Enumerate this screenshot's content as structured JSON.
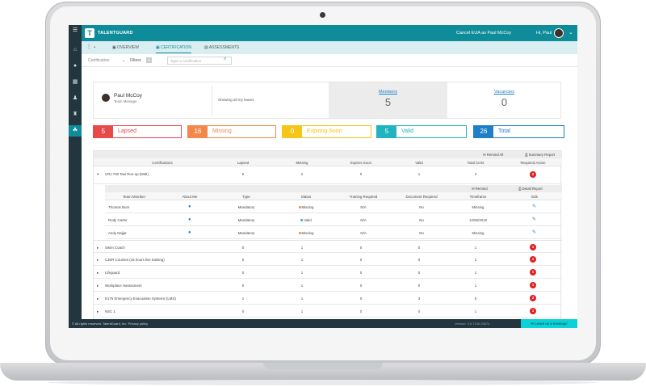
{
  "app": {
    "brand": "TALENTGUARD",
    "cancel_text": "Cancel EUA as Paul McCoy",
    "greeting": "Hi, Paul"
  },
  "tabs": [
    {
      "label": "OVERVIEW"
    },
    {
      "label": "CERTIFICATION"
    },
    {
      "label": "ASSESSMENTS"
    }
  ],
  "filters": {
    "certification_label": "Certification",
    "filters_label": "Filters",
    "filter_count": "0",
    "search_placeholder": "Type a certification"
  },
  "profile": {
    "name": "Paul McCoy",
    "role": "Team Manager",
    "showing": "Showing all my teams"
  },
  "kpis": {
    "members_label": "Members",
    "members_value": "5",
    "vacancies_label": "Vacancies",
    "vacancies_value": "0"
  },
  "stats": [
    {
      "value": "5",
      "label": "Lapsed",
      "color": "#e84a4a"
    },
    {
      "value": "16",
      "label": "Missing",
      "color": "#f2894a"
    },
    {
      "value": "0",
      "label": "Expiring Soon",
      "color": "#f5c518"
    },
    {
      "value": "5",
      "label": "Valid",
      "color": "#21b3bf"
    },
    {
      "value": "26",
      "label": "Total",
      "color": "#1e7fc8"
    }
  ],
  "table": {
    "remind_all": "Remind All",
    "summary_report": "Summary Report",
    "headers": [
      "Certifications",
      "Lapsed",
      "Missing",
      "Expires Soon",
      "Valid",
      "Total Certs",
      "Required Action"
    ],
    "expanded": {
      "name": "CRJ 700 Taxi Run-up (DMI)",
      "lapsed": "0",
      "missing": "2",
      "expires": "0",
      "valid": "1",
      "total": "3",
      "action": "2"
    },
    "sub_remind": "Remind",
    "sub_detail": "Detail Report",
    "sub_headers": [
      "Team Member",
      "About Me",
      "Type",
      "Status",
      "Training Required",
      "Document Required",
      "Timeframe",
      "Edit"
    ],
    "members": [
      {
        "name": "Thomas Burn",
        "type": "Mandatory",
        "status": "Missing",
        "training": "N/A",
        "document": "No",
        "timeframe": "Missing"
      },
      {
        "name": "Rudy Carter",
        "type": "Mandatory",
        "status": "Valid",
        "training": "N/A",
        "document": "No",
        "timeframe": "12/06/2019"
      },
      {
        "name": "Andy Najjar",
        "type": "Mandatory",
        "status": "Missing",
        "training": "N/A",
        "document": "No",
        "timeframe": "Missing"
      }
    ],
    "rows": [
      {
        "name": "Swim Coach",
        "lapsed": "0",
        "missing": "1",
        "expires": "0",
        "valid": "0",
        "total": "1",
        "action": "1"
      },
      {
        "name": "CJER Courses (15 hours live training)",
        "lapsed": "0",
        "missing": "1",
        "expires": "0",
        "valid": "0",
        "total": "1",
        "action": "1"
      },
      {
        "name": "Lifeguard",
        "lapsed": "0",
        "missing": "1",
        "expires": "0",
        "valid": "0",
        "total": "1",
        "action": "1"
      },
      {
        "name": "Workplace Harassment",
        "lapsed": "0",
        "missing": "1",
        "expires": "0",
        "valid": "0",
        "total": "1",
        "action": "1"
      },
      {
        "name": "E175 Emergency Evacuation Systems (LMS)",
        "lapsed": "1",
        "missing": "1",
        "expires": "0",
        "valid": "3",
        "total": "5",
        "action": "2"
      },
      {
        "name": "NSC 1",
        "lapsed": "0",
        "missing": "1",
        "expires": "0",
        "valid": "0",
        "total": "1",
        "action": "1"
      }
    ]
  },
  "footer": {
    "copyright": "© All rights reserved. TalentGuard, Inc",
    "privacy": "Privacy policy",
    "version": "Version: 9.0.7145.25674",
    "leave": "Leave us a message"
  },
  "colors": {
    "teal": "#0f8c9a",
    "navy": "#23353e",
    "missing_dot": "#f2894a",
    "valid_dot": "#21b3bf"
  }
}
